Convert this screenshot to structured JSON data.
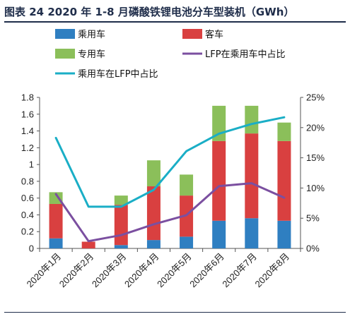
{
  "title": "图表 24 2020 年 1-8 月磷酸铁锂电池分车型装机（GWh）",
  "colors": {
    "passenger": "#2f7fc1",
    "bus": "#d94040",
    "special": "#8bbf5a",
    "lfp_share": "#7b4fa0",
    "passenger_lfp_share": "#1aaec6"
  },
  "chart_data": {
    "type": "bar",
    "stacked": true,
    "categories": [
      "2020年1月",
      "2020年2月",
      "2020年3月",
      "2020年4月",
      "2020年5月",
      "2020年6月",
      "2020年7月",
      "2020年8月"
    ],
    "series": [
      {
        "name": "乘用车",
        "type": "bar",
        "axis": "left",
        "values": [
          0.12,
          0.0,
          0.04,
          0.1,
          0.14,
          0.33,
          0.36,
          0.33
        ]
      },
      {
        "name": "客车",
        "type": "bar",
        "axis": "left",
        "values": [
          0.41,
          0.08,
          0.48,
          0.64,
          0.49,
          0.95,
          1.01,
          0.95
        ]
      },
      {
        "name": "专用车",
        "type": "bar",
        "axis": "left",
        "values": [
          0.14,
          0.0,
          0.11,
          0.31,
          0.25,
          0.42,
          0.33,
          0.22
        ]
      },
      {
        "name": "LFP在乘用车中占比",
        "type": "line",
        "axis": "right",
        "values": [
          0.09,
          0.012,
          0.022,
          0.04,
          0.055,
          0.103,
          0.108,
          0.084
        ]
      },
      {
        "name": "乘用车在LFP中占比",
        "type": "line",
        "axis": "right",
        "values": [
          0.183,
          0.069,
          0.069,
          0.097,
          0.161,
          0.19,
          0.206,
          0.217
        ]
      }
    ],
    "y_left": {
      "min": 0,
      "max": 1.8,
      "ticks": [
        "0",
        "0.2",
        "0.4",
        "0.6",
        "0.8",
        "1",
        "1.2",
        "1.4",
        "1.6",
        "1.8"
      ]
    },
    "y_right": {
      "min": 0,
      "max": 0.25,
      "ticks": [
        "0%",
        "5%",
        "10%",
        "15%",
        "20%",
        "25%"
      ]
    },
    "legend_position": "top",
    "grid": false
  }
}
